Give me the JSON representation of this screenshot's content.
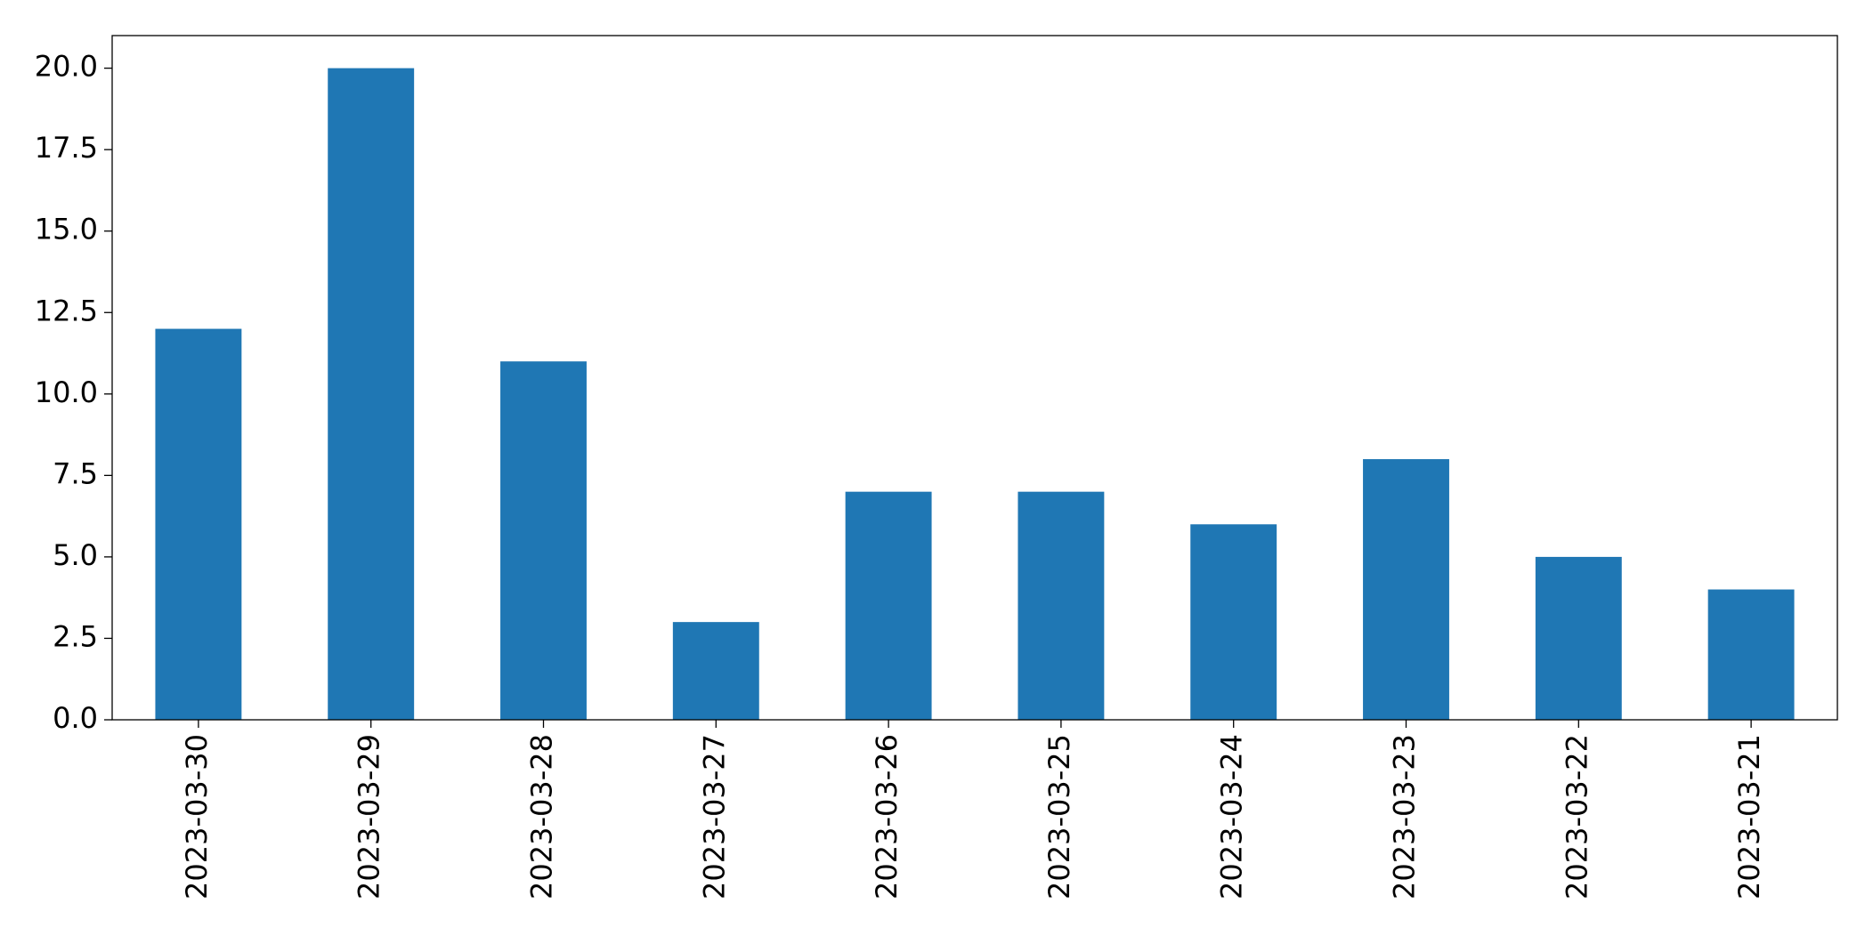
{
  "chart_data": {
    "type": "bar",
    "categories": [
      "2023-03-30",
      "2023-03-29",
      "2023-03-28",
      "2023-03-27",
      "2023-03-26",
      "2023-03-25",
      "2023-03-24",
      "2023-03-23",
      "2023-03-22",
      "2023-03-21"
    ],
    "values": [
      12,
      20,
      11,
      3,
      7,
      7,
      6,
      8,
      5,
      4
    ],
    "color": "#1f77b4",
    "ylim": [
      0,
      21
    ],
    "yticks": [
      {
        "value": 0,
        "label": "0.0"
      },
      2.5,
      {
        "value": 5,
        "label": "5.0"
      },
      7.5,
      {
        "value": 10,
        "label": "10.0"
      },
      12.5,
      {
        "value": 15,
        "label": "15.0"
      },
      17.5,
      {
        "value": 20,
        "label": "20.0"
      }
    ],
    "grid": false
  }
}
